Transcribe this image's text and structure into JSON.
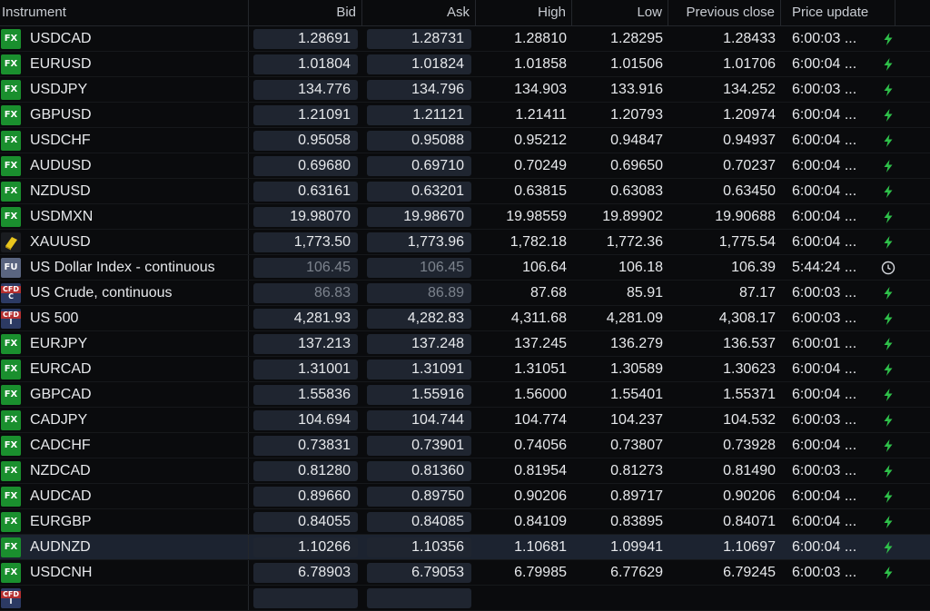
{
  "headers": {
    "instrument": "Instrument",
    "bid": "Bid",
    "ask": "Ask",
    "high": "High",
    "low": "Low",
    "prev": "Previous close",
    "update": "Price update"
  },
  "colors": {
    "bolt": "#2fc14a",
    "fx_badge": "#1a8f2e",
    "cell_box": "#1f2530"
  },
  "rows": [
    {
      "type": "fx",
      "badge": "FX",
      "symbol": "USDCAD",
      "bid": "1.28691",
      "ask": "1.28731",
      "high": "1.28810",
      "low": "1.28295",
      "prev": "1.28433",
      "time": "6:00:03 ...",
      "status": "bolt-icon"
    },
    {
      "type": "fx",
      "badge": "FX",
      "symbol": "EURUSD",
      "bid": "1.01804",
      "ask": "1.01824",
      "high": "1.01858",
      "low": "1.01506",
      "prev": "1.01706",
      "time": "6:00:04 ...",
      "status": "bolt-icon"
    },
    {
      "type": "fx",
      "badge": "FX",
      "symbol": "USDJPY",
      "bid": "134.776",
      "ask": "134.796",
      "high": "134.903",
      "low": "133.916",
      "prev": "134.252",
      "time": "6:00:03 ...",
      "status": "bolt-icon"
    },
    {
      "type": "fx",
      "badge": "FX",
      "symbol": "GBPUSD",
      "bid": "1.21091",
      "ask": "1.21121",
      "high": "1.21411",
      "low": "1.20793",
      "prev": "1.20974",
      "time": "6:00:04 ...",
      "status": "bolt-icon"
    },
    {
      "type": "fx",
      "badge": "FX",
      "symbol": "USDCHF",
      "bid": "0.95058",
      "ask": "0.95088",
      "high": "0.95212",
      "low": "0.94847",
      "prev": "0.94937",
      "time": "6:00:04 ...",
      "status": "bolt-icon"
    },
    {
      "type": "fx",
      "badge": "FX",
      "symbol": "AUDUSD",
      "bid": "0.69680",
      "ask": "0.69710",
      "high": "0.70249",
      "low": "0.69650",
      "prev": "0.70237",
      "time": "6:00:04 ...",
      "status": "bolt-icon"
    },
    {
      "type": "fx",
      "badge": "FX",
      "symbol": "NZDUSD",
      "bid": "0.63161",
      "ask": "0.63201",
      "high": "0.63815",
      "low": "0.63083",
      "prev": "0.63450",
      "time": "6:00:04 ...",
      "status": "bolt-icon"
    },
    {
      "type": "fx",
      "badge": "FX",
      "symbol": "USDMXN",
      "bid": "19.98070",
      "ask": "19.98670",
      "high": "19.98559",
      "low": "19.89902",
      "prev": "19.90688",
      "time": "6:00:04 ...",
      "status": "bolt-icon"
    },
    {
      "type": "gold",
      "badge": "",
      "symbol": "XAUUSD",
      "bid": "1,773.50",
      "ask": "1,773.96",
      "high": "1,782.18",
      "low": "1,772.36",
      "prev": "1,775.54",
      "time": "6:00:04 ...",
      "status": "bolt-icon"
    },
    {
      "type": "fu",
      "badge": "FU",
      "symbol": "US Dollar Index - continuous",
      "bid": "106.45",
      "ask": "106.45",
      "high": "106.64",
      "low": "106.18",
      "prev": "106.39",
      "time": "5:44:24 ...",
      "status": "clock-icon",
      "dim": true
    },
    {
      "type": "cfd",
      "badge": "CFD",
      "sub": "C",
      "symbol": "US Crude, continuous",
      "bid": "86.83",
      "ask": "86.89",
      "high": "87.68",
      "low": "85.91",
      "prev": "87.17",
      "time": "6:00:03 ...",
      "status": "bolt-icon",
      "dim": true
    },
    {
      "type": "cfd",
      "badge": "CFD",
      "sub": "I",
      "symbol": "US 500",
      "bid": "4,281.93",
      "ask": "4,282.83",
      "high": "4,311.68",
      "low": "4,281.09",
      "prev": "4,308.17",
      "time": "6:00:03 ...",
      "status": "bolt-icon"
    },
    {
      "type": "fx",
      "badge": "FX",
      "symbol": "EURJPY",
      "bid": "137.213",
      "ask": "137.248",
      "high": "137.245",
      "low": "136.279",
      "prev": "136.537",
      "time": "6:00:01 ...",
      "status": "bolt-icon"
    },
    {
      "type": "fx",
      "badge": "FX",
      "symbol": "EURCAD",
      "bid": "1.31001",
      "ask": "1.31091",
      "high": "1.31051",
      "low": "1.30589",
      "prev": "1.30623",
      "time": "6:00:04 ...",
      "status": "bolt-icon"
    },
    {
      "type": "fx",
      "badge": "FX",
      "symbol": "GBPCAD",
      "bid": "1.55836",
      "ask": "1.55916",
      "high": "1.56000",
      "low": "1.55401",
      "prev": "1.55371",
      "time": "6:00:04 ...",
      "status": "bolt-icon"
    },
    {
      "type": "fx",
      "badge": "FX",
      "symbol": "CADJPY",
      "bid": "104.694",
      "ask": "104.744",
      "high": "104.774",
      "low": "104.237",
      "prev": "104.532",
      "time": "6:00:03 ...",
      "status": "bolt-icon"
    },
    {
      "type": "fx",
      "badge": "FX",
      "symbol": "CADCHF",
      "bid": "0.73831",
      "ask": "0.73901",
      "high": "0.74056",
      "low": "0.73807",
      "prev": "0.73928",
      "time": "6:00:04 ...",
      "status": "bolt-icon"
    },
    {
      "type": "fx",
      "badge": "FX",
      "symbol": "NZDCAD",
      "bid": "0.81280",
      "ask": "0.81360",
      "high": "0.81954",
      "low": "0.81273",
      "prev": "0.81490",
      "time": "6:00:03 ...",
      "status": "bolt-icon"
    },
    {
      "type": "fx",
      "badge": "FX",
      "symbol": "AUDCAD",
      "bid": "0.89660",
      "ask": "0.89750",
      "high": "0.90206",
      "low": "0.89717",
      "prev": "0.90206",
      "time": "6:00:04 ...",
      "status": "bolt-icon"
    },
    {
      "type": "fx",
      "badge": "FX",
      "symbol": "EURGBP",
      "bid": "0.84055",
      "ask": "0.84085",
      "high": "0.84109",
      "low": "0.83895",
      "prev": "0.84071",
      "time": "6:00:04 ...",
      "status": "bolt-icon"
    },
    {
      "type": "fx",
      "badge": "FX",
      "symbol": "AUDNZD",
      "bid": "1.10266",
      "ask": "1.10356",
      "high": "1.10681",
      "low": "1.09941",
      "prev": "1.10697",
      "time": "6:00:04 ...",
      "status": "bolt-icon",
      "selected": true
    },
    {
      "type": "fx",
      "badge": "FX",
      "symbol": "USDCNH",
      "bid": "6.78903",
      "ask": "6.79053",
      "high": "6.79985",
      "low": "6.77629",
      "prev": "6.79245",
      "time": "6:00:03 ...",
      "status": "bolt-icon"
    },
    {
      "type": "cfd",
      "badge": "CFD",
      "sub": "I",
      "symbol": "",
      "bid": "",
      "ask": "",
      "high": "",
      "low": "",
      "prev": "",
      "time": "",
      "status": ""
    }
  ]
}
